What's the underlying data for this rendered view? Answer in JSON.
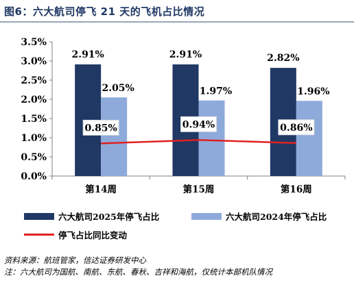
{
  "title": "图6：六大航司停飞 21 天的飞机占比情况",
  "chart_data": {
    "type": "bar",
    "categories": [
      "第14周",
      "第15周",
      "第16周"
    ],
    "series": [
      {
        "name": "六大航司2025年停飞占比",
        "type": "bar",
        "color": "#1f3864",
        "values": [
          2.91,
          2.91,
          2.82
        ],
        "labels": [
          "2.91%",
          "2.91%",
          "2.82%"
        ]
      },
      {
        "name": "六大航司2024年停飞占比",
        "type": "bar",
        "color": "#8eaadb",
        "values": [
          2.05,
          1.97,
          1.96
        ],
        "labels": [
          "2.05%",
          "1.97%",
          "1.96%"
        ]
      },
      {
        "name": "停飞占比同比变动",
        "type": "line",
        "color": "#e02020",
        "values": [
          0.85,
          0.94,
          0.86
        ],
        "labels": [
          "0.85%",
          "0.94%",
          "0.86%"
        ]
      }
    ],
    "y_ticks": [
      "0.0%",
      "0.5%",
      "1.0%",
      "1.5%",
      "2.0%",
      "2.5%",
      "3.0%",
      "3.5%"
    ],
    "ylim": [
      0,
      3.5
    ],
    "grid": false,
    "legend_position": "bottom"
  },
  "footer": {
    "source": "资料来源：航班管家，信达证券研发中心",
    "note": "注：六大航司为国航、南航、东航、春秋、吉祥和海航，仅统计本部机队情况"
  }
}
